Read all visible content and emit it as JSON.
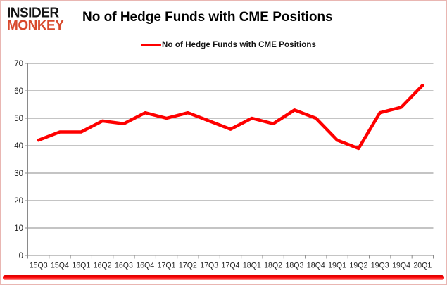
{
  "logo": {
    "line1": "INSIDER",
    "line2": "MONKEY"
  },
  "header": {
    "title": "No of Hedge Funds with CME Positions"
  },
  "legend": {
    "label": "No of Hedge Funds with CME Positions"
  },
  "chart_data": {
    "type": "line",
    "title": "No of Hedge Funds with CME Positions",
    "categories": [
      "15Q3",
      "15Q4",
      "16Q1",
      "16Q2",
      "16Q3",
      "16Q4",
      "17Q1",
      "17Q2",
      "17Q3",
      "17Q4",
      "18Q1",
      "18Q2",
      "18Q3",
      "18Q4",
      "19Q1",
      "19Q2",
      "19Q3",
      "19Q4",
      "20Q1"
    ],
    "series": [
      {
        "name": "No of Hedge Funds with CME Positions",
        "color": "#fe0000",
        "values": [
          42,
          45,
          45,
          49,
          48,
          52,
          50,
          52,
          49,
          46,
          50,
          48,
          53,
          50,
          42,
          39,
          52,
          54,
          62
        ]
      }
    ],
    "xlabel": "",
    "ylabel": "",
    "ylim": [
      0,
      70
    ],
    "ytick_interval": 10,
    "grid": true,
    "legend_position": "top-center"
  },
  "colors": {
    "line": "#fe0000",
    "grid": "#8a8a8a",
    "axis_text": "#1f1f1f",
    "logo_monkey": "#d8492c",
    "frame_border": "#e9b6b2",
    "bottom_bar": "#fb0505"
  }
}
